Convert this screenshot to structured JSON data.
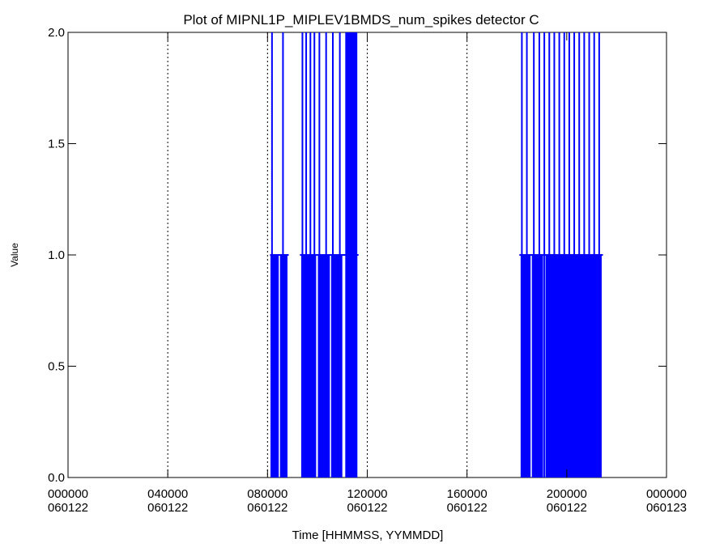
{
  "colors": {
    "series": "#0000ff",
    "axis": "#000000",
    "background": "#ffffff"
  },
  "chart_data": {
    "type": "bar",
    "title": "Plot of MIPNL1P_MIPLEV1BMDS_num_spikes detector C",
    "xlabel": "Time [HHMMSS, YYMMDD]",
    "ylabel": "Value",
    "xlim": [
      0,
      24
    ],
    "ylim": [
      0.0,
      2.0
    ],
    "x_unit": "hours since 000000 060122",
    "grid": "dotted vertical lines at major x ticks",
    "legend": "none",
    "yticks": [
      {
        "value": 0.0,
        "label": "0.0"
      },
      {
        "value": 0.5,
        "label": "0.5"
      },
      {
        "value": 1.0,
        "label": "1.0"
      },
      {
        "value": 1.5,
        "label": "1.5"
      },
      {
        "value": 2.0,
        "label": "2.0"
      }
    ],
    "xticks": [
      {
        "value": 0,
        "time": "000000",
        "date": "060122"
      },
      {
        "value": 4,
        "time": "040000",
        "date": "060122"
      },
      {
        "value": 8,
        "time": "080000",
        "date": "060122"
      },
      {
        "value": 12,
        "time": "120000",
        "date": "060122"
      },
      {
        "value": 16,
        "time": "160000",
        "date": "060122"
      },
      {
        "value": 20,
        "time": "200000",
        "date": "060122"
      },
      {
        "value": 24,
        "time": "000000",
        "date": "060123"
      }
    ],
    "gridlines_x": [
      4,
      8,
      12,
      16
    ],
    "spikes": [
      {
        "x": 8.18,
        "y": 2.0
      },
      {
        "x": 8.62,
        "y": 2.0
      },
      {
        "x": 9.4,
        "y": 2.0
      },
      {
        "x": 9.55,
        "y": 2.0
      },
      {
        "x": 9.72,
        "y": 2.0
      },
      {
        "x": 9.88,
        "y": 2.0
      },
      {
        "x": 10.08,
        "y": 2.0
      },
      {
        "x": 10.35,
        "y": 2.0
      },
      {
        "x": 10.62,
        "y": 2.0
      },
      {
        "x": 10.9,
        "y": 2.0
      },
      {
        "x": 11.15,
        "y": 2.0
      },
      {
        "x": 11.2,
        "y": 2.0
      },
      {
        "x": 11.25,
        "y": 2.0
      },
      {
        "x": 11.3,
        "y": 2.0
      },
      {
        "x": 11.35,
        "y": 2.0
      },
      {
        "x": 11.4,
        "y": 2.0
      },
      {
        "x": 11.45,
        "y": 2.0
      },
      {
        "x": 18.2,
        "y": 2.0
      },
      {
        "x": 18.4,
        "y": 2.0
      },
      {
        "x": 18.68,
        "y": 2.0
      },
      {
        "x": 18.9,
        "y": 2.0
      },
      {
        "x": 19.1,
        "y": 2.0
      },
      {
        "x": 19.3,
        "y": 2.0
      },
      {
        "x": 19.5,
        "y": 2.0
      },
      {
        "x": 19.7,
        "y": 2.0
      },
      {
        "x": 19.9,
        "y": 2.0
      },
      {
        "x": 20.1,
        "y": 2.0
      },
      {
        "x": 20.3,
        "y": 2.0
      },
      {
        "x": 20.5,
        "y": 2.0
      },
      {
        "x": 20.7,
        "y": 2.0
      },
      {
        "x": 20.9,
        "y": 2.0
      },
      {
        "x": 21.1,
        "y": 2.0
      },
      {
        "x": 21.3,
        "y": 2.0
      }
    ],
    "filled_intervals": [
      {
        "x_start": 8.12,
        "x_end": 8.45,
        "y": 1.0
      },
      {
        "x_start": 8.5,
        "x_end": 8.8,
        "y": 1.0
      },
      {
        "x_start": 9.35,
        "x_end": 9.95,
        "y": 1.0
      },
      {
        "x_start": 10.02,
        "x_end": 10.5,
        "y": 1.0
      },
      {
        "x_start": 10.55,
        "x_end": 11.0,
        "y": 1.0
      },
      {
        "x_start": 11.15,
        "x_end": 11.6,
        "y": 1.0
      },
      {
        "x_start": 18.15,
        "x_end": 18.55,
        "y": 1.0
      },
      {
        "x_start": 18.6,
        "x_end": 19.05,
        "y": 1.0
      },
      {
        "x_start": 19.15,
        "x_end": 21.4,
        "y": 1.0
      }
    ],
    "level_segments": [
      {
        "x_start": 8.1,
        "x_end": 8.85,
        "y": 1.0
      },
      {
        "x_start": 9.3,
        "x_end": 11.65,
        "y": 1.0
      },
      {
        "x_start": 18.1,
        "x_end": 21.45,
        "y": 1.0
      }
    ],
    "dense_bursts": [
      {
        "x_start": 11.15,
        "x_end": 11.6,
        "y": 2.0
      }
    ]
  }
}
